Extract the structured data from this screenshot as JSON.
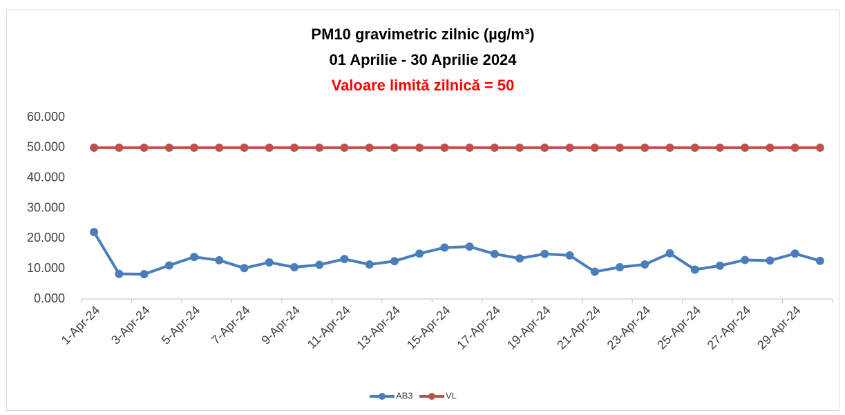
{
  "chart_data": {
    "type": "line",
    "title": "PM10 gravimetric zilnic (µg/m³)",
    "subtitle": "01 Aprilie  -  30 Aprilie  2024",
    "annotation": "Valoare limită zilnică = 50",
    "categories": [
      "1-Apr-24",
      null,
      "3-Apr-24",
      null,
      "5-Apr-24",
      null,
      "7-Apr-24",
      null,
      "9-Apr-24",
      null,
      "11-Apr-24",
      null,
      "13-Apr-24",
      null,
      "15-Apr-24",
      null,
      "17-Apr-24",
      null,
      "19-Apr-24",
      null,
      "21-Apr-24",
      null,
      "23-Apr-24",
      null,
      "25-Apr-24",
      null,
      "27-Apr-24",
      null,
      "29-Apr-24",
      null
    ],
    "series": [
      {
        "name": "AB3",
        "color": "#4a7ebb",
        "values": [
          22.1,
          8.3,
          8.2,
          11.1,
          13.9,
          12.8,
          10.2,
          12.1,
          10.5,
          11.3,
          13.2,
          11.4,
          12.5,
          15.0,
          17.0,
          17.3,
          14.9,
          13.4,
          14.9,
          14.4,
          9.0,
          10.5,
          11.4,
          15.1,
          9.7,
          11.0,
          12.9,
          12.7,
          15.0,
          12.6
        ]
      },
      {
        "name": "VL",
        "color": "#c0504d",
        "values": [
          50,
          50,
          50,
          50,
          50,
          50,
          50,
          50,
          50,
          50,
          50,
          50,
          50,
          50,
          50,
          50,
          50,
          50,
          50,
          50,
          50,
          50,
          50,
          50,
          50,
          50,
          50,
          50,
          50,
          50
        ]
      }
    ],
    "ylim": [
      0,
      60
    ],
    "yticks": [
      {
        "value": 0,
        "label": "0.000"
      },
      {
        "value": 10,
        "label": "10.000"
      },
      {
        "value": 20,
        "label": "20.000"
      },
      {
        "value": 30,
        "label": "30.000"
      },
      {
        "value": 40,
        "label": "40.000"
      },
      {
        "value": 50,
        "label": "50.000"
      },
      {
        "value": 60,
        "label": "60.000"
      }
    ],
    "grid": false,
    "legend": "bottom"
  }
}
